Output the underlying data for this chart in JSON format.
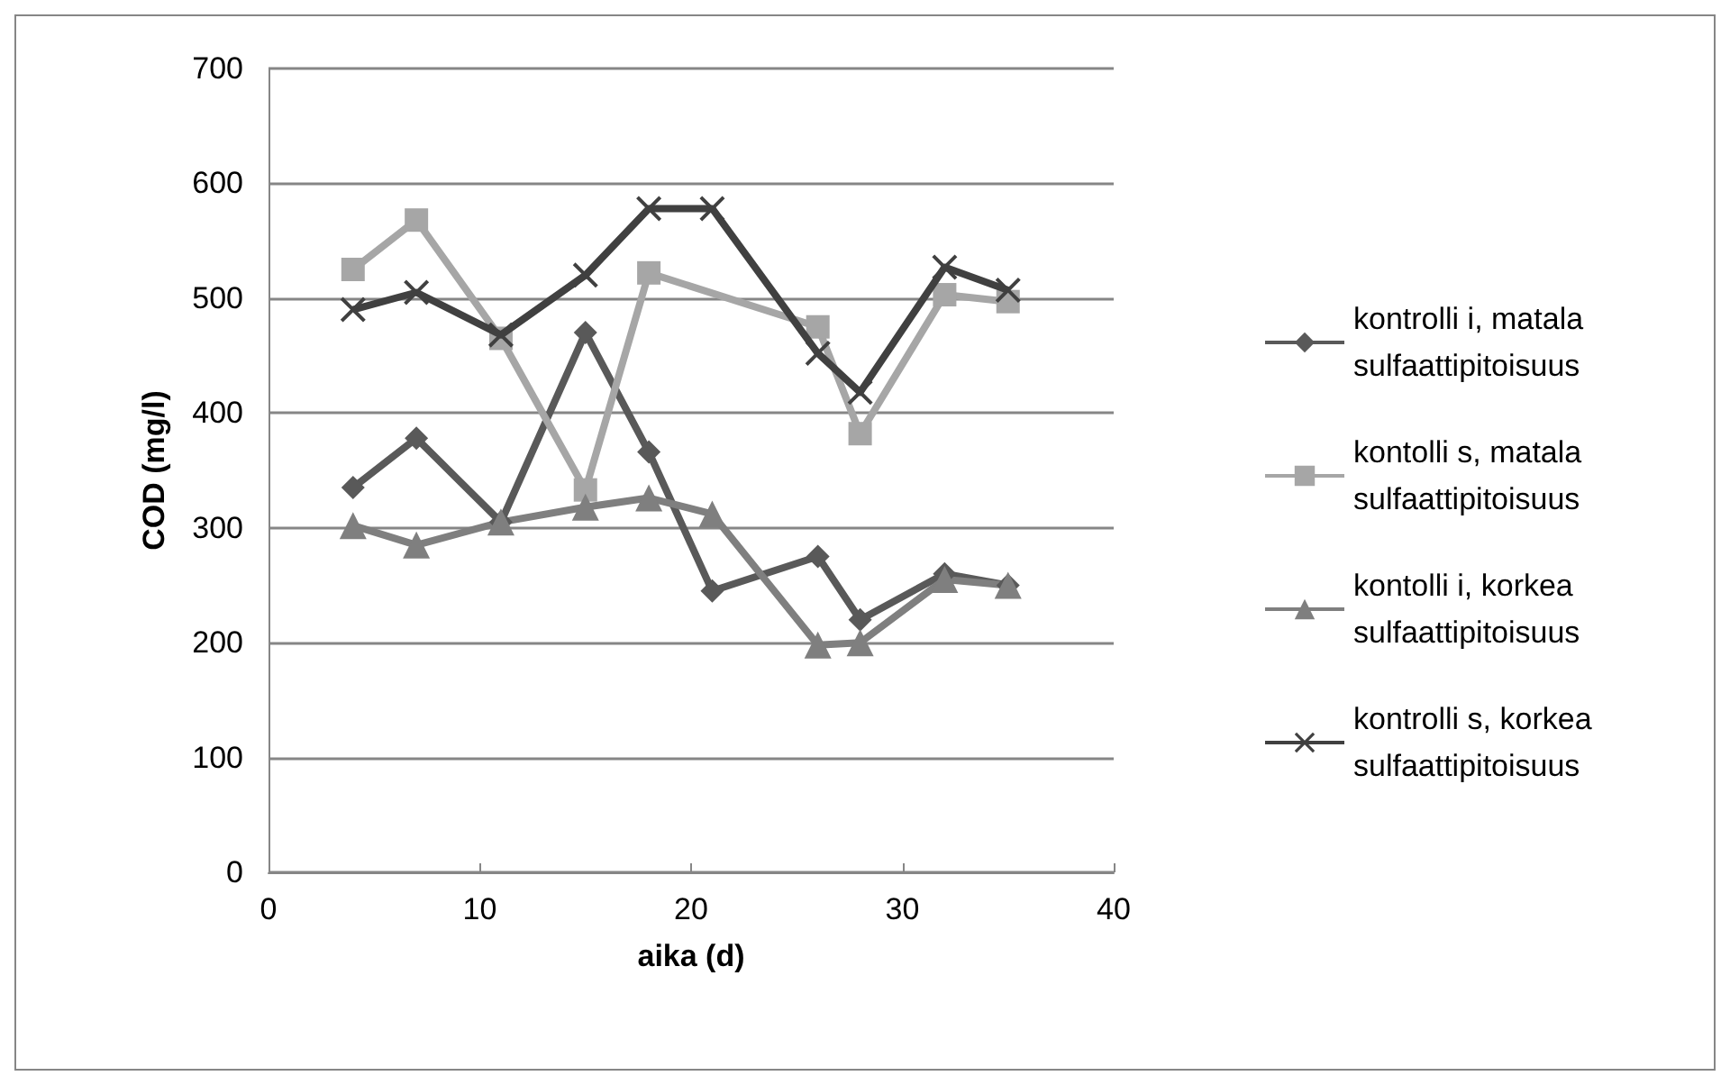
{
  "chart_data": {
    "type": "line",
    "xlabel": "aika (d)",
    "ylabel": "COD (mg/l)",
    "x": [
      4,
      7,
      11,
      15,
      18,
      21,
      26,
      28,
      32,
      35
    ],
    "series": [
      {
        "name": "kontrolli i, matala sulfaattipitoisuus",
        "color": "#595959",
        "marker": "diamond",
        "values": [
          335,
          378,
          305,
          470,
          366,
          245,
          275,
          220,
          260,
          250
        ]
      },
      {
        "name": "kontolli s, matala sulfaattipitoisuus",
        "color": "#a6a6a6",
        "marker": "square",
        "values": [
          525,
          568,
          465,
          333,
          522,
          null,
          475,
          382,
          503,
          497
        ]
      },
      {
        "name": "kontolli i, korkea sulfaattipitoisuus",
        "color": "#7f7f7f",
        "marker": "triangle",
        "values": [
          302,
          285,
          305,
          318,
          326,
          312,
          198,
          200,
          255,
          250
        ]
      },
      {
        "name": "kontrolli s, korkea sulfaattipitoisuus",
        "color": "#404040",
        "marker": "cross",
        "values": [
          490,
          505,
          468,
          520,
          578,
          578,
          452,
          418,
          527,
          507
        ]
      }
    ],
    "xlim": [
      0,
      40
    ],
    "xticks": [
      0,
      10,
      20,
      30,
      40
    ],
    "ylim": [
      0,
      700
    ],
    "yticks": [
      0,
      100,
      200,
      300,
      400,
      500,
      600,
      700
    ],
    "grid": "y",
    "legend": "right",
    "line_style": "solid"
  }
}
